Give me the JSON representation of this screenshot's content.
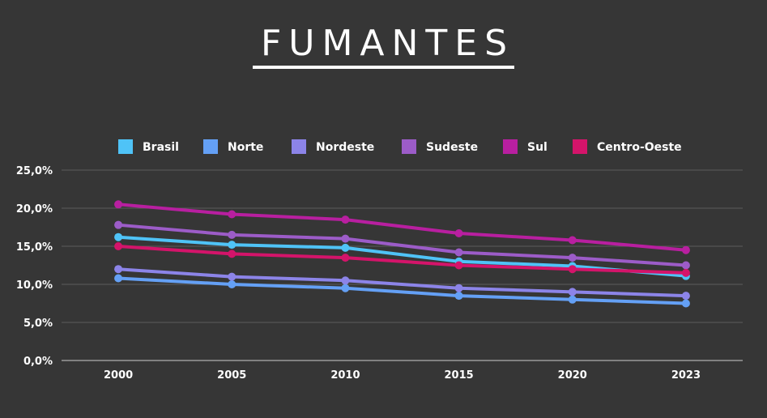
{
  "chart_data": {
    "type": "line",
    "title": "FUMANTES",
    "xlabel": "",
    "ylabel": "",
    "x": [
      "2000",
      "2005",
      "2010",
      "2015",
      "2020",
      "2023"
    ],
    "ylim": [
      0,
      25
    ],
    "yticks": [
      "0,0%",
      "5,0%",
      "10,0%",
      "15,0%",
      "20,0%",
      "25,0%"
    ],
    "grid": true,
    "legend_position": "top-center",
    "series": [
      {
        "name": "Brasil",
        "color": "#4fc3f7",
        "values": [
          16.2,
          15.2,
          14.8,
          13.0,
          12.4,
          11.1
        ]
      },
      {
        "name": "Norte",
        "color": "#64a0f5",
        "values": [
          10.8,
          10.0,
          9.5,
          8.5,
          8.0,
          7.5
        ]
      },
      {
        "name": "Nordeste",
        "color": "#8c84e8",
        "values": [
          12.0,
          11.0,
          10.5,
          9.5,
          9.0,
          8.5
        ]
      },
      {
        "name": "Sudeste",
        "color": "#9c5cc8",
        "values": [
          17.8,
          16.5,
          16.0,
          14.2,
          13.5,
          12.5
        ]
      },
      {
        "name": "Sul",
        "color": "#b81fa0",
        "values": [
          20.5,
          19.2,
          18.5,
          16.7,
          15.8,
          14.5
        ]
      },
      {
        "name": "Centro-Oeste",
        "color": "#d4146a",
        "values": [
          15.0,
          14.0,
          13.5,
          12.5,
          12.0,
          11.5
        ]
      }
    ]
  }
}
